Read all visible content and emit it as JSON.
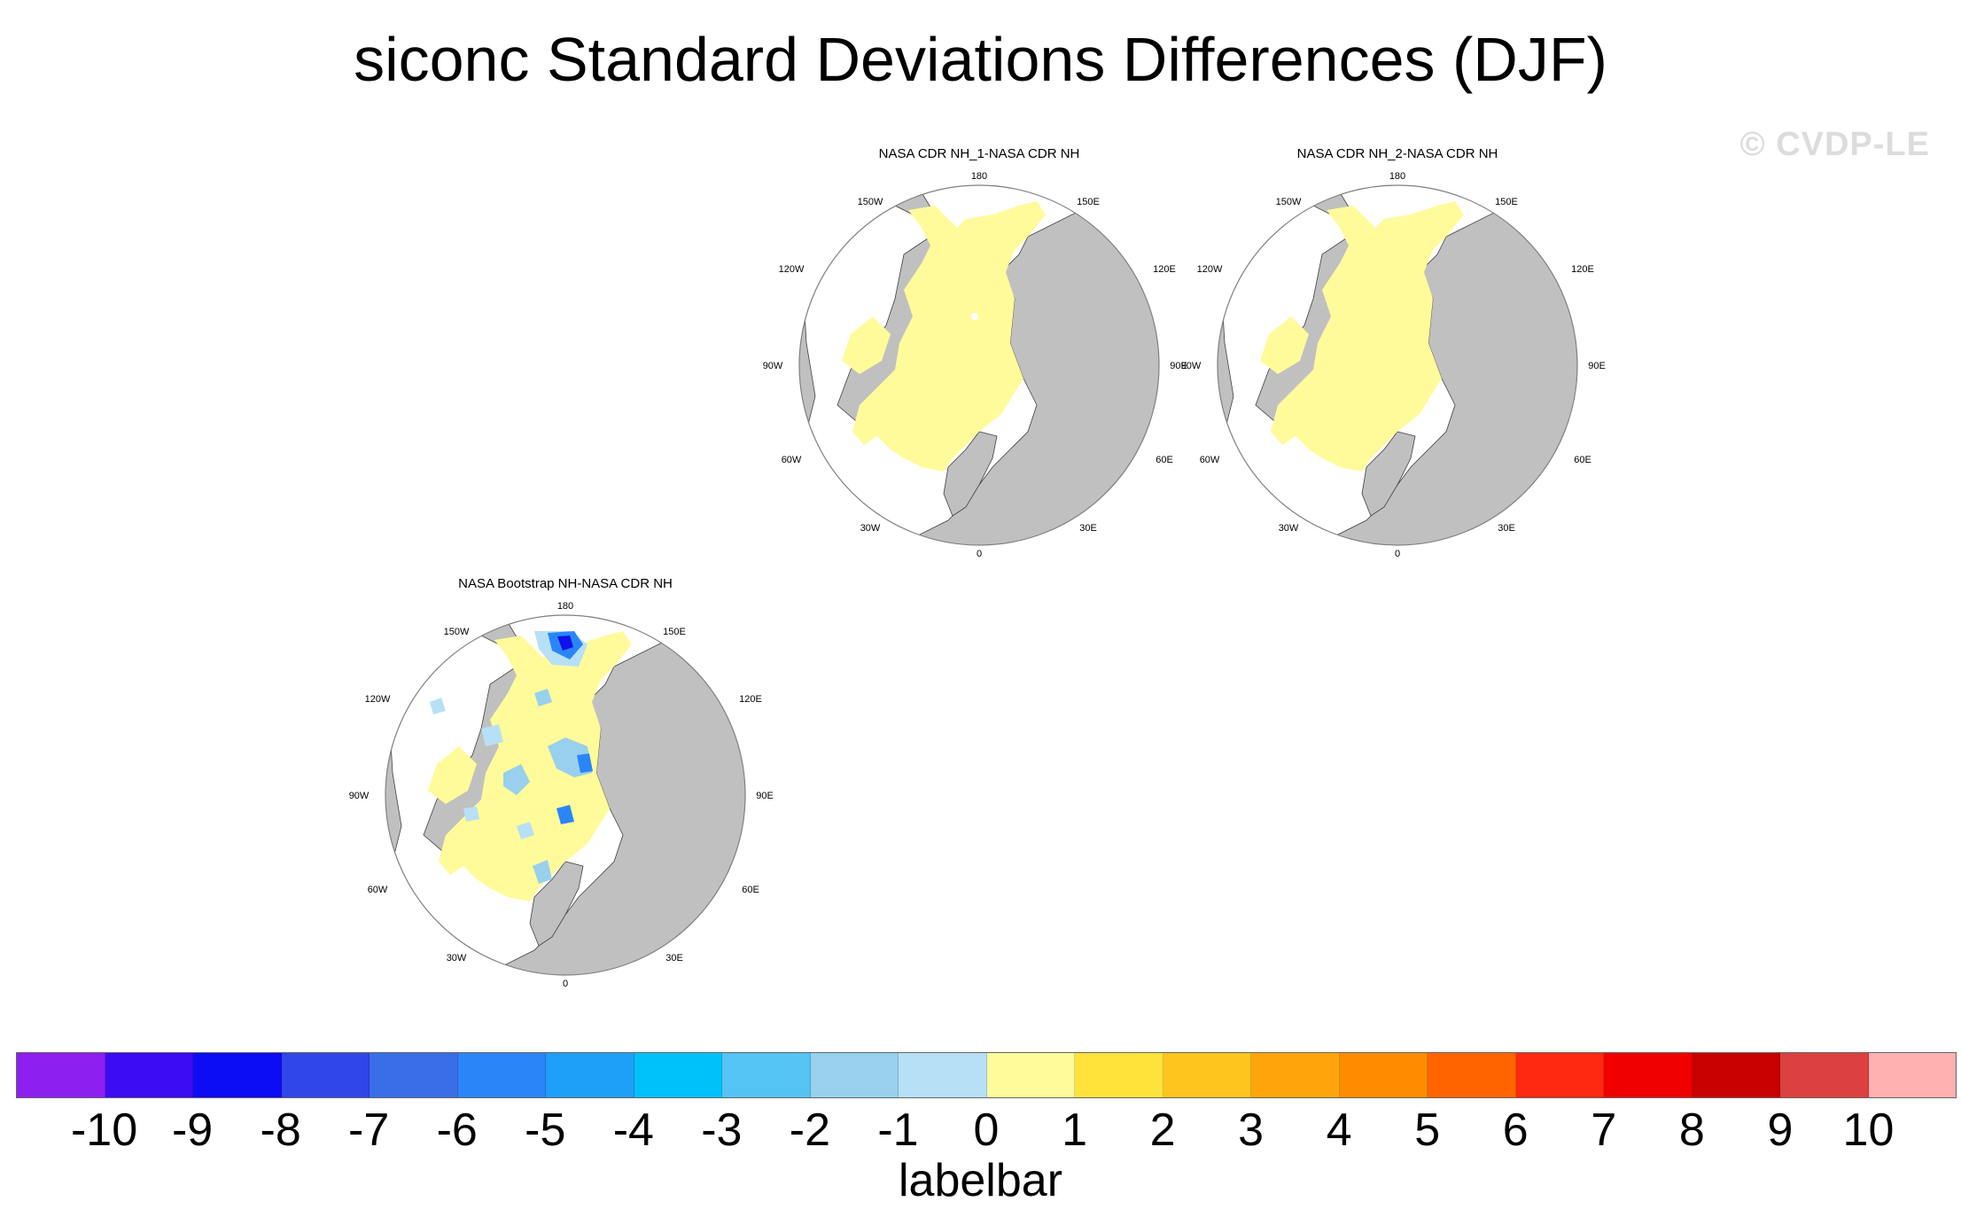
{
  "title": "siconc Standard Deviations Differences (DJF)",
  "watermark": "© CVDP-LE",
  "colors": {
    "land": "#c0c0c0",
    "ocean": "#ffffff",
    "ice_near_zero": "#fffb9a",
    "ice_small_negative": "#b7e0f6",
    "ice_neg_2": "#98d0ee",
    "ice_neg_4": "#2a86f8",
    "ice_neg_8": "#1010ea",
    "outline": "#404040"
  },
  "longitude_labels": {
    "top": "180",
    "top_left": "150W",
    "top_right": "150E",
    "upper_left": "120W",
    "upper_right": "120E",
    "left": "90W",
    "right": "90E",
    "lower_left": "60W",
    "lower_right": "60E",
    "bottom_left": "30W",
    "bottom_right": "30E",
    "bottom": "0"
  },
  "panels": [
    {
      "id": "cdr1",
      "title": "NASA CDR NH_1-NASA CDR NH",
      "pattern": "uniform"
    },
    {
      "id": "cdr2",
      "title": "NASA CDR NH_2-NASA CDR NH",
      "pattern": "uniform"
    },
    {
      "id": "bootstrap",
      "title": "NASA Bootstrap NH-NASA CDR NH",
      "pattern": "mixed"
    }
  ],
  "labelbar": {
    "colors": [
      "#8c1ef0",
      "#3c0cf5",
      "#0c0cf5",
      "#3046e8",
      "#3a6ee8",
      "#2a86f8",
      "#1ea0f8",
      "#00c2fa",
      "#54c4f4",
      "#98d0ee",
      "#b7e0f6",
      "#fffb9a",
      "#ffe23a",
      "#ffc41e",
      "#ffa40a",
      "#ff8c00",
      "#ff6400",
      "#ff2810",
      "#f00000",
      "#c80000",
      "#dc4040",
      "#ffb0b0"
    ],
    "ticks": [
      "-10",
      "-9",
      "-8",
      "-7",
      "-6",
      "-5",
      "-4",
      "-3",
      "-2",
      "-1",
      "0",
      "1",
      "2",
      "3",
      "4",
      "5",
      "6",
      "7",
      "8",
      "9",
      "10"
    ],
    "label": "labelbar"
  }
}
